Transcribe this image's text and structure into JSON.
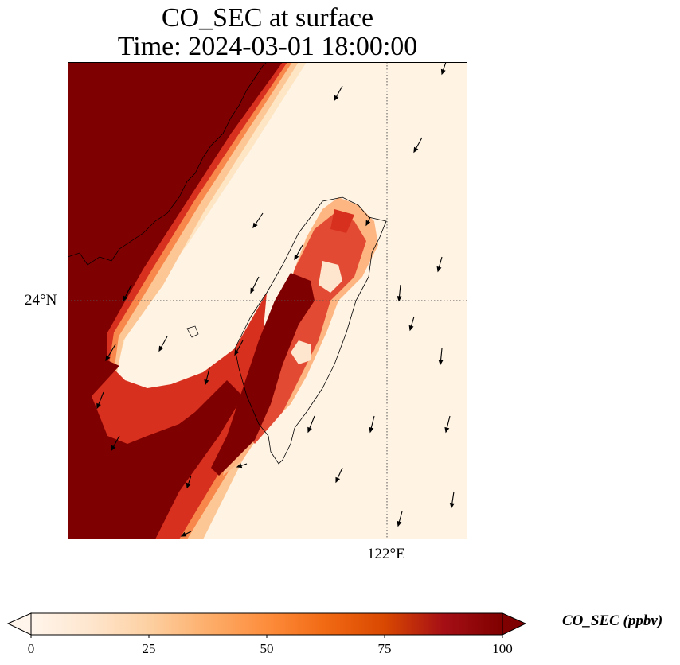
{
  "title": {
    "line1": "CO_SEC at surface",
    "line2": "Time: 2024-03-01 18:00:00"
  },
  "axes": {
    "lat_label": "24°N",
    "lon_label": "122°E",
    "gridline_style": "dotted"
  },
  "colorbar": {
    "label": "CO_SEC (ppbv)",
    "ticks": [
      "0",
      "25",
      "50",
      "75",
      "100"
    ],
    "min": 0,
    "max": 100,
    "extend": "both",
    "colormap": [
      "#fff5eb",
      "#fee6ce",
      "#fdd0a2",
      "#fdae6b",
      "#fd8d3c",
      "#f16913",
      "#d94801",
      "#a50f15",
      "#7f0000"
    ]
  },
  "map": {
    "field": "CO_SEC",
    "units": "ppbv",
    "wind_vectors": true,
    "coastlines": true
  }
}
